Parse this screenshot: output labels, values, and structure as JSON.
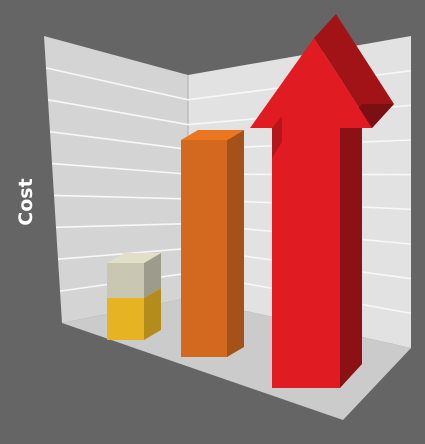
{
  "chart_data": {
    "type": "bar",
    "style": "3d",
    "ylabel": "Cost",
    "xlabel": "",
    "title": "",
    "grid": true,
    "ylim": [
      0,
      100
    ],
    "bars": [
      {
        "kind": "stacked-block",
        "segments": [
          {
            "value": 12,
            "color": "#E6B422"
          },
          {
            "value": 10,
            "color": "#C9C7B2"
          }
        ]
      },
      {
        "kind": "bar",
        "value": 62,
        "color": "#D2691E"
      },
      {
        "kind": "arrow",
        "value": 100,
        "color": "#E11B22"
      }
    ],
    "colors": {
      "background": "#656565",
      "back_wall": "#D4D4D4",
      "side_wall": "#E2E2E2",
      "floor": "#CBCBCB",
      "grid": "#F7F7F7"
    }
  }
}
